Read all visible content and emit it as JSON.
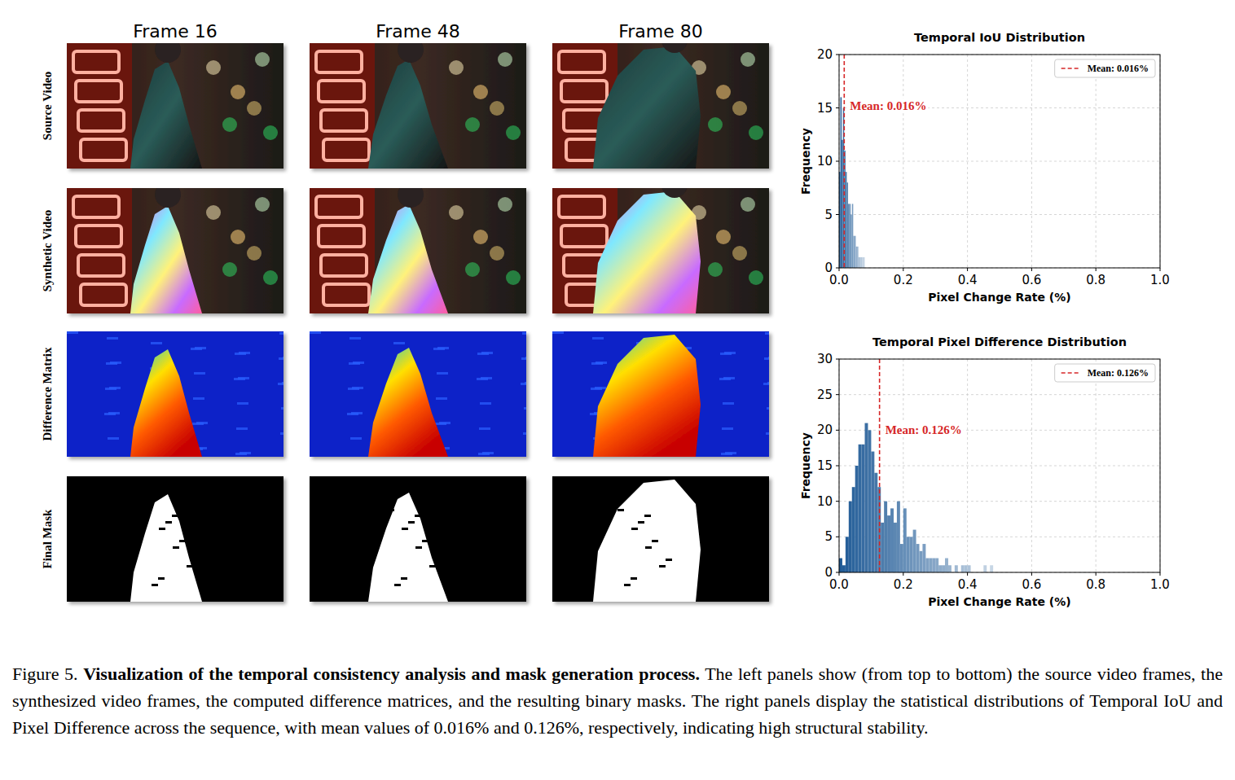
{
  "figure": {
    "columns": [
      "Frame 16",
      "Frame 48",
      "Frame 80"
    ],
    "rows": [
      "Source Video",
      "Synthetic Video",
      "Difference Matrix",
      "Final Mask"
    ],
    "caption": {
      "label": "Figure 5.",
      "title": "Visualization of the temporal consistency analysis and mask generation process.",
      "text": "The left panels show (from top to bottom) the source video frames, the synthesized video frames, the computed difference matrices, and the resulting binary masks. The right panels display the statistical distributions of Temporal IoU and Pixel Difference across the sequence, with mean values of 0.016% and 0.126%, respectively, indicating high structural stability."
    }
  },
  "chart_data": [
    {
      "type": "histogram",
      "title": "Temporal IoU Distribution",
      "x_label": "Pixel Change Rate (%)",
      "y_label": "Frequency",
      "bins": [
        0,
        0.004,
        0.008,
        0.012,
        0.016,
        0.02,
        0.024,
        0.028,
        0.032,
        0.036,
        0.04,
        0.044,
        0.048,
        0.052,
        0.056,
        0.06,
        0.064,
        0.068,
        0.072,
        0.076,
        0.08
      ],
      "counts": [
        9,
        16,
        12,
        15,
        11,
        9,
        8,
        6,
        6,
        5,
        6,
        3,
        3,
        2,
        2,
        1,
        1,
        1,
        1,
        1
      ],
      "color": "#1f5a96",
      "mean": {
        "value": 0.016,
        "label": "Mean: 0.016%",
        "color": "#d62728"
      },
      "xlim": [
        0,
        1
      ],
      "xticks": [
        {
          "value": 0,
          "label": "0.0"
        },
        {
          "value": 0.2,
          "label": "0.2"
        },
        {
          "value": 0.4,
          "label": "0.4"
        },
        {
          "value": 0.6,
          "label": "0.6"
        },
        {
          "value": 0.8,
          "label": "0.8"
        },
        {
          "value": 1,
          "label": "1.0"
        }
      ],
      "ylim": [
        0,
        20
      ],
      "yticks": [
        0,
        5,
        10,
        15,
        20
      ],
      "grid": true,
      "legend": "upper right"
    },
    {
      "type": "histogram",
      "title": "Temporal Pixel Difference Distribution",
      "x_label": "Pixel Change Rate (%)",
      "y_label": "Frequency",
      "bins": [
        0,
        0.01,
        0.02,
        0.03,
        0.04,
        0.05,
        0.06,
        0.07,
        0.08,
        0.09,
        0.1,
        0.11,
        0.12,
        0.13,
        0.14,
        0.15,
        0.16,
        0.17,
        0.18,
        0.19,
        0.2,
        0.21,
        0.22,
        0.23,
        0.24,
        0.25,
        0.26,
        0.27,
        0.28,
        0.29,
        0.3,
        0.31,
        0.32,
        0.33,
        0.34,
        0.35,
        0.36,
        0.37,
        0.38,
        0.39,
        0.4,
        0.41,
        0.42,
        0.43,
        0.44,
        0.45,
        0.46,
        0.47,
        0.48
      ],
      "counts": [
        2,
        1,
        5,
        10,
        12,
        15,
        18,
        18,
        21,
        20,
        17,
        14,
        12,
        7,
        10,
        8,
        9,
        7,
        10,
        4,
        9,
        5,
        5,
        6,
        4,
        3,
        4,
        2,
        2,
        2,
        2,
        1,
        1,
        2,
        1,
        0,
        1,
        0,
        1,
        1,
        1,
        0,
        0,
        0,
        0,
        1,
        0,
        1
      ],
      "color": "#1f5a96",
      "mean": {
        "value": 0.126,
        "label": "Mean: 0.126%",
        "color": "#d62728"
      },
      "xlim": [
        0,
        1
      ],
      "xticks": [
        {
          "value": 0,
          "label": "0.0"
        },
        {
          "value": 0.2,
          "label": "0.2"
        },
        {
          "value": 0.4,
          "label": "0.4"
        },
        {
          "value": 0.6,
          "label": "0.6"
        },
        {
          "value": 0.8,
          "label": "0.8"
        },
        {
          "value": 1,
          "label": "1.0"
        }
      ],
      "ylim": [
        0,
        30
      ],
      "yticks": [
        0,
        5,
        10,
        15,
        20,
        25,
        30
      ],
      "grid": true,
      "legend": "upper right"
    }
  ]
}
